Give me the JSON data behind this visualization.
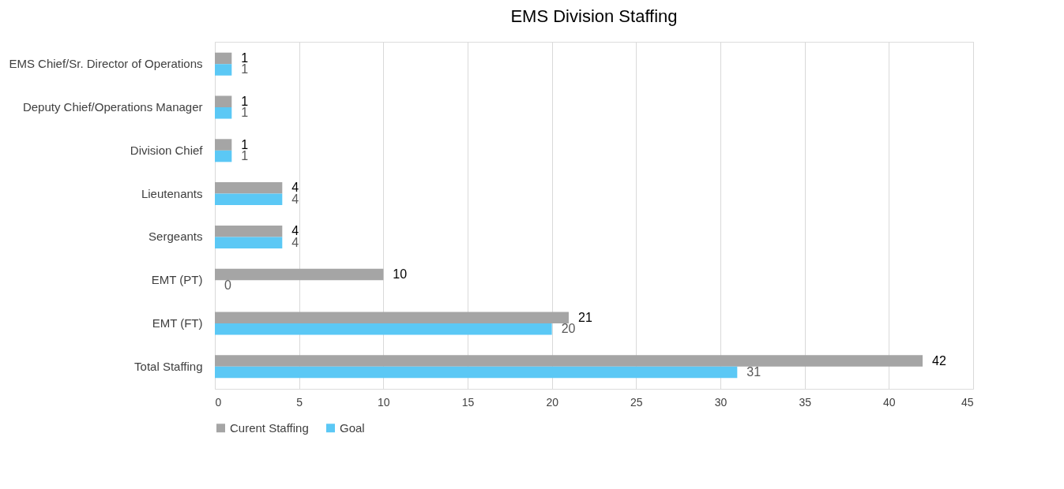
{
  "chart_data": {
    "type": "bar",
    "orientation": "horizontal",
    "title": "EMS Division Staffing",
    "categories": [
      "EMS Chief/Sr. Director of Operations",
      "Deputy Chief/Operations Manager",
      "Division Chief",
      "Lieutenants",
      "Sergeants",
      "EMT (PT)",
      "EMT (FT)",
      "Total Staffing"
    ],
    "series": [
      {
        "name": "Curent Staffing",
        "color": "#a5a5a5",
        "values": [
          1,
          1,
          1,
          4,
          4,
          10,
          21,
          42
        ]
      },
      {
        "name": "Goal",
        "color": "#5bc8f5",
        "values": [
          1,
          1,
          1,
          4,
          4,
          0,
          20,
          31
        ]
      }
    ],
    "xlim": [
      0,
      45
    ],
    "xticks": [
      0,
      5,
      10,
      15,
      20,
      25,
      30,
      35,
      40,
      45
    ],
    "grid": "x",
    "legend": "bottom",
    "data_labels": true
  }
}
